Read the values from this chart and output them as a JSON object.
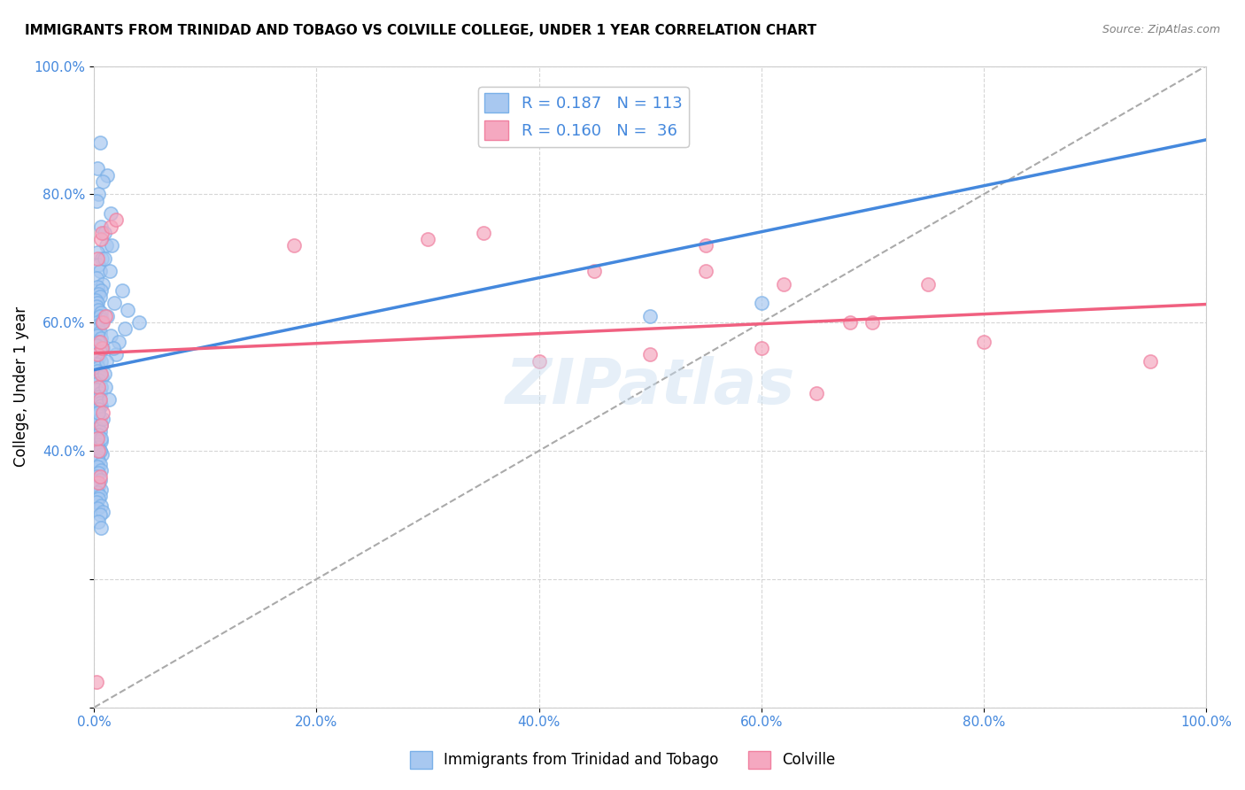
{
  "title": "IMMIGRANTS FROM TRINIDAD AND TOBAGO VS COLVILLE COLLEGE, UNDER 1 YEAR CORRELATION CHART",
  "source": "Source: ZipAtlas.com",
  "ylabel": "College, Under 1 year",
  "xlim": [
    0,
    100
  ],
  "ylim": [
    0,
    100
  ],
  "blue_color": "#a8c8f0",
  "pink_color": "#f5a8c0",
  "blue_edge": "#7ab0e8",
  "pink_edge": "#f080a0",
  "blue_line_color": "#4488dd",
  "pink_line_color": "#f06080",
  "dashed_line_color": "#aaaaaa",
  "legend_blue_label": "R = 0.187   N = 113",
  "legend_pink_label": "R = 0.160   N =  36",
  "legend_bottom_blue": "Immigrants from Trinidad and Tobago",
  "legend_bottom_pink": "Colville",
  "R_blue": 0.187,
  "N_blue": 113,
  "R_pink": 0.16,
  "N_pink": 36,
  "blue_scatter_x": [
    0.5,
    0.3,
    1.2,
    0.8,
    0.4,
    0.2,
    1.5,
    0.6,
    0.9,
    1.1,
    0.3,
    0.7,
    0.4,
    0.5,
    0.2,
    0.8,
    0.3,
    0.6,
    0.4,
    0.5,
    0.1,
    0.3,
    0.2,
    0.4,
    0.6,
    0.5,
    0.7,
    0.3,
    0.2,
    0.4,
    0.5,
    0.3,
    0.6,
    0.4,
    0.2,
    0.8,
    0.5,
    0.3,
    0.4,
    0.6,
    0.2,
    0.4,
    0.3,
    0.5,
    0.7,
    0.4,
    0.3,
    0.6,
    0.2,
    0.5,
    0.4,
    0.3,
    0.5,
    0.6,
    0.4,
    0.2,
    0.3,
    0.5,
    0.4,
    0.6,
    0.3,
    0.5,
    0.4,
    0.2,
    0.6,
    0.3,
    0.4,
    0.5,
    0.7,
    0.3,
    0.4,
    0.5,
    0.3,
    0.6,
    0.4,
    0.2,
    0.5,
    0.3,
    0.4,
    0.6,
    0.3,
    0.5,
    0.4,
    0.2,
    0.6,
    0.3,
    0.8,
    0.5,
    0.4,
    0.6,
    2.5,
    1.8,
    1.2,
    0.9,
    1.4,
    0.7,
    1.5,
    0.5,
    3.0,
    2.0,
    1.0,
    0.8,
    1.6,
    4.0,
    2.2,
    1.3,
    0.6,
    0.9,
    1.1,
    1.7,
    2.8,
    50.0,
    0.4,
    60.0
  ],
  "blue_scatter_y": [
    88.0,
    84.0,
    83.0,
    82.0,
    80.0,
    79.0,
    77.0,
    75.0,
    74.0,
    72.0,
    71.0,
    70.0,
    69.0,
    68.0,
    67.0,
    66.0,
    65.5,
    65.0,
    64.5,
    64.0,
    63.5,
    63.0,
    62.5,
    62.0,
    61.5,
    61.0,
    60.5,
    60.0,
    59.5,
    59.0,
    58.5,
    58.0,
    57.5,
    57.0,
    56.5,
    56.0,
    55.5,
    55.0,
    54.5,
    54.0,
    53.5,
    53.0,
    52.5,
    52.0,
    51.5,
    51.0,
    50.5,
    50.0,
    49.5,
    49.0,
    48.5,
    48.0,
    47.5,
    47.0,
    46.5,
    46.0,
    45.5,
    45.0,
    44.5,
    44.0,
    43.5,
    43.0,
    42.5,
    42.0,
    41.5,
    41.0,
    40.5,
    40.0,
    39.5,
    39.0,
    38.5,
    38.0,
    37.5,
    37.0,
    36.5,
    36.0,
    35.5,
    35.0,
    34.5,
    34.0,
    33.5,
    33.0,
    32.5,
    32.0,
    31.5,
    31.0,
    30.5,
    30.0,
    29.0,
    28.0,
    65.0,
    63.0,
    61.0,
    70.0,
    68.0,
    60.0,
    58.0,
    40.0,
    62.0,
    55.0,
    50.0,
    45.0,
    72.0,
    60.0,
    57.0,
    48.0,
    42.0,
    52.0,
    54.0,
    56.0,
    59.0,
    61.0,
    46.0,
    63.0
  ],
  "pink_scatter_x": [
    0.2,
    0.4,
    0.5,
    0.8,
    1.0,
    0.3,
    0.6,
    0.7,
    0.4,
    0.5,
    0.3,
    0.6,
    0.8,
    1.5,
    2.0,
    0.4,
    0.7,
    0.5,
    0.3,
    0.6,
    18.0,
    30.0,
    35.0,
    40.0,
    45.0,
    50.0,
    55.0,
    60.0,
    65.0,
    70.0,
    75.0,
    80.0,
    55.0,
    62.0,
    68.0,
    95.0
  ],
  "pink_scatter_y": [
    4.0,
    35.0,
    36.0,
    60.0,
    61.0,
    70.0,
    73.0,
    74.0,
    50.0,
    48.0,
    55.0,
    52.0,
    46.0,
    75.0,
    76.0,
    40.0,
    56.0,
    57.0,
    42.0,
    44.0,
    72.0,
    73.0,
    74.0,
    54.0,
    68.0,
    55.0,
    68.0,
    56.0,
    49.0,
    60.0,
    66.0,
    57.0,
    72.0,
    66.0,
    60.0,
    54.0
  ],
  "x_ticks": [
    0,
    20,
    40,
    60,
    80,
    100
  ],
  "x_tick_labels": [
    "0.0%",
    "20.0%",
    "40.0%",
    "60.0%",
    "80.0%",
    "100.0%"
  ],
  "y_ticks": [
    0,
    20,
    40,
    60,
    80,
    100
  ],
  "y_tick_labels": [
    "",
    "",
    "40.0%",
    "60.0%",
    "80.0%",
    "100.0%"
  ]
}
